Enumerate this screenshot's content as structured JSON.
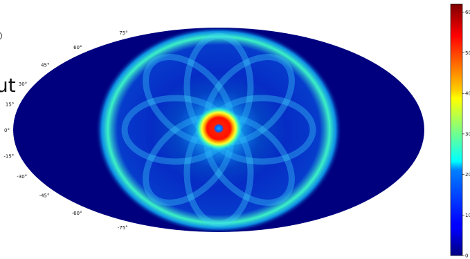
{
  "overlay_text": "ut",
  "chart_data": {
    "type": "heatmap",
    "projection": "mollweide",
    "title": "",
    "xlabel": "",
    "ylabel": "",
    "latitude_ticks": [
      "75°",
      "60°",
      "45°",
      "30°",
      "15°",
      "0°",
      "-15°",
      "-30°",
      "-45°",
      "-60°",
      "-75°"
    ],
    "latitude_tick_values": [
      75,
      60,
      45,
      30,
      15,
      0,
      -15,
      -30,
      -45,
      -60,
      -75
    ],
    "colorbar": {
      "colormap": "jet",
      "vmin": 0,
      "vmax": 62,
      "tick_values": [
        0,
        10,
        20,
        30,
        40,
        50,
        60
      ],
      "tick_labels": [
        "0",
        "10",
        "20",
        "30",
        "40",
        "50",
        "60"
      ]
    },
    "background_value": 0,
    "features": [
      {
        "name": "central hotspot",
        "lon": 0,
        "lat": 0,
        "radius_deg": 12,
        "value": 58
      },
      {
        "name": "central minimum",
        "lon": 0,
        "lat": 0,
        "radius_deg": 2,
        "value": 25
      },
      {
        "name": "outer ring",
        "angular_radius_deg": 90,
        "value": 32
      },
      {
        "name": "petal lobes",
        "count": 8,
        "value": 20
      },
      {
        "name": "inner diffuse disk",
        "angular_radius_deg": 90,
        "value": 15
      }
    ],
    "colors": {
      "background": "#00007f",
      "low": "#0000ff",
      "mid": "#00ffff",
      "high": "#ff0000",
      "max": "#7f0000"
    }
  }
}
